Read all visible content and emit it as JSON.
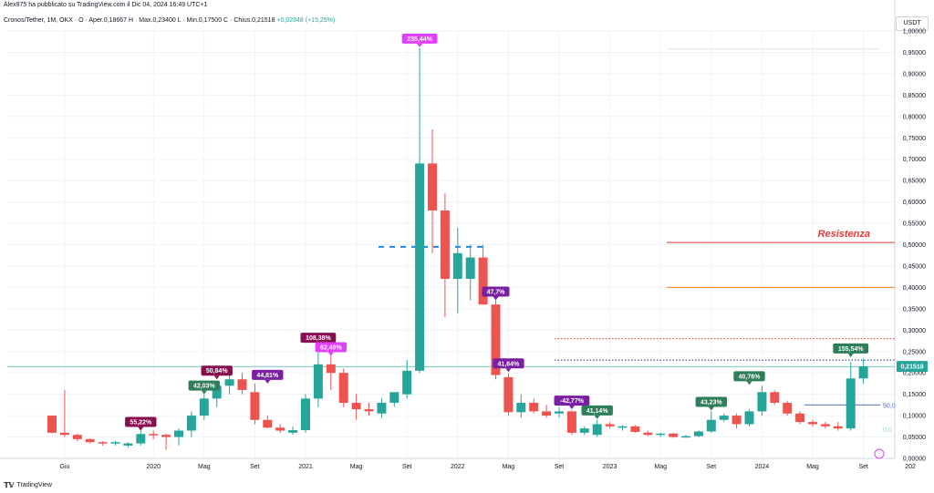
{
  "header": {
    "published_line": "Alex975 ha pubblicato su TradingView.com il Dic 04, 2024 16:49 UTC+1"
  },
  "ohlc_line": {
    "symbol": "Cronos/Tether, 1M, OKX",
    "open": "O · Aper.0,18667",
    "high": "H · Max.0,23400",
    "low": "L · Min.0,17500",
    "close": "C · Chius.0,21518",
    "change": "+0,02848 (+15,25%)"
  },
  "currency_label": "USDT",
  "footer": {
    "logo": "TradingView"
  },
  "colors": {
    "up": "#26a69a",
    "down": "#ef5350",
    "resistance_red": "#e53935",
    "orange_line": "#f57c00",
    "price_line": "#26a69a",
    "blue_dashed": "#1e88e5"
  },
  "chart_data": {
    "type": "candlestick",
    "title": "",
    "xlabel": "",
    "ylabel": "USDT",
    "ylim": [
      0,
      1.0
    ],
    "y_ticks": [
      "1,00000",
      "0,95000",
      "0,90000",
      "0,85000",
      "0,80000",
      "0,75000",
      "0,70000",
      "0,65000",
      "0,60000",
      "0,55000",
      "0,50000",
      "0,45000",
      "0,40000",
      "0,35000",
      "0,30000",
      "0,25000",
      "0,20000",
      "0,15000",
      "0,10000",
      "0,05000",
      "0,00000"
    ],
    "x_ticks": [
      "Giu",
      "2020",
      "Mag",
      "Set",
      "2021",
      "Mag",
      "Set",
      "2022",
      "Mag",
      "Set",
      "2023",
      "Mag",
      "Set",
      "2024",
      "Mag",
      "Set",
      "202"
    ],
    "start_month": "2019-05",
    "candles": [
      {
        "o": 0.1,
        "h": 0.1,
        "l": 0.058,
        "c": 0.06
      },
      {
        "o": 0.06,
        "h": 0.16,
        "l": 0.05,
        "c": 0.055
      },
      {
        "o": 0.055,
        "h": 0.058,
        "l": 0.04,
        "c": 0.045
      },
      {
        "o": 0.045,
        "h": 0.047,
        "l": 0.035,
        "c": 0.038
      },
      {
        "o": 0.038,
        "h": 0.04,
        "l": 0.03,
        "c": 0.035
      },
      {
        "o": 0.035,
        "h": 0.042,
        "l": 0.03,
        "c": 0.038
      },
      {
        "o": 0.03,
        "h": 0.038,
        "l": 0.025,
        "c": 0.035
      },
      {
        "o": 0.035,
        "h": 0.065,
        "l": 0.03,
        "c": 0.057
      },
      {
        "o": 0.057,
        "h": 0.065,
        "l": 0.045,
        "c": 0.055
      },
      {
        "o": 0.055,
        "h": 0.058,
        "l": 0.02,
        "c": 0.05
      },
      {
        "o": 0.05,
        "h": 0.07,
        "l": 0.03,
        "c": 0.065
      },
      {
        "o": 0.065,
        "h": 0.11,
        "l": 0.05,
        "c": 0.1
      },
      {
        "o": 0.1,
        "h": 0.15,
        "l": 0.09,
        "c": 0.14
      },
      {
        "o": 0.14,
        "h": 0.18,
        "l": 0.12,
        "c": 0.17
      },
      {
        "o": 0.17,
        "h": 0.2,
        "l": 0.15,
        "c": 0.185
      },
      {
        "o": 0.185,
        "h": 0.2,
        "l": 0.15,
        "c": 0.16
      },
      {
        "o": 0.155,
        "h": 0.175,
        "l": 0.08,
        "c": 0.09
      },
      {
        "o": 0.09,
        "h": 0.1,
        "l": 0.07,
        "c": 0.072
      },
      {
        "o": 0.072,
        "h": 0.08,
        "l": 0.06,
        "c": 0.065
      },
      {
        "o": 0.06,
        "h": 0.075,
        "l": 0.055,
        "c": 0.066
      },
      {
        "o": 0.066,
        "h": 0.15,
        "l": 0.06,
        "c": 0.14
      },
      {
        "o": 0.14,
        "h": 0.26,
        "l": 0.12,
        "c": 0.22
      },
      {
        "o": 0.22,
        "h": 0.24,
        "l": 0.16,
        "c": 0.2
      },
      {
        "o": 0.2,
        "h": 0.21,
        "l": 0.12,
        "c": 0.13
      },
      {
        "o": 0.13,
        "h": 0.15,
        "l": 0.09,
        "c": 0.115
      },
      {
        "o": 0.115,
        "h": 0.13,
        "l": 0.1,
        "c": 0.11
      },
      {
        "o": 0.105,
        "h": 0.14,
        "l": 0.095,
        "c": 0.13
      },
      {
        "o": 0.13,
        "h": 0.15,
        "l": 0.12,
        "c": 0.155
      },
      {
        "o": 0.15,
        "h": 0.23,
        "l": 0.14,
        "c": 0.205
      },
      {
        "o": 0.205,
        "h": 0.96,
        "l": 0.2,
        "c": 0.69
      },
      {
        "o": 0.69,
        "h": 0.77,
        "l": 0.48,
        "c": 0.58
      },
      {
        "o": 0.58,
        "h": 0.62,
        "l": 0.33,
        "c": 0.42
      },
      {
        "o": 0.42,
        "h": 0.54,
        "l": 0.34,
        "c": 0.48
      },
      {
        "o": 0.42,
        "h": 0.5,
        "l": 0.37,
        "c": 0.47
      },
      {
        "o": 0.47,
        "h": 0.5,
        "l": 0.36,
        "c": 0.36
      },
      {
        "o": 0.36,
        "h": 0.37,
        "l": 0.185,
        "c": 0.195
      },
      {
        "o": 0.19,
        "h": 0.2,
        "l": 0.1,
        "c": 0.108
      },
      {
        "o": 0.108,
        "h": 0.15,
        "l": 0.095,
        "c": 0.13
      },
      {
        "o": 0.13,
        "h": 0.14,
        "l": 0.105,
        "c": 0.11
      },
      {
        "o": 0.11,
        "h": 0.125,
        "l": 0.095,
        "c": 0.1
      },
      {
        "o": 0.105,
        "h": 0.12,
        "l": 0.095,
        "c": 0.11
      },
      {
        "o": 0.11,
        "h": 0.112,
        "l": 0.055,
        "c": 0.06
      },
      {
        "o": 0.06,
        "h": 0.075,
        "l": 0.055,
        "c": 0.07
      },
      {
        "o": 0.055,
        "h": 0.09,
        "l": 0.05,
        "c": 0.08
      },
      {
        "o": 0.08,
        "h": 0.085,
        "l": 0.07,
        "c": 0.075
      },
      {
        "o": 0.072,
        "h": 0.078,
        "l": 0.065,
        "c": 0.075
      },
      {
        "o": 0.075,
        "h": 0.078,
        "l": 0.06,
        "c": 0.062
      },
      {
        "o": 0.06,
        "h": 0.065,
        "l": 0.052,
        "c": 0.055
      },
      {
        "o": 0.055,
        "h": 0.06,
        "l": 0.05,
        "c": 0.058
      },
      {
        "o": 0.058,
        "h": 0.06,
        "l": 0.048,
        "c": 0.05
      },
      {
        "o": 0.05,
        "h": 0.055,
        "l": 0.048,
        "c": 0.052
      },
      {
        "o": 0.052,
        "h": 0.065,
        "l": 0.05,
        "c": 0.063
      },
      {
        "o": 0.063,
        "h": 0.11,
        "l": 0.06,
        "c": 0.09
      },
      {
        "o": 0.09,
        "h": 0.105,
        "l": 0.085,
        "c": 0.1
      },
      {
        "o": 0.1,
        "h": 0.105,
        "l": 0.07,
        "c": 0.08
      },
      {
        "o": 0.08,
        "h": 0.115,
        "l": 0.075,
        "c": 0.11
      },
      {
        "o": 0.11,
        "h": 0.17,
        "l": 0.1,
        "c": 0.155
      },
      {
        "o": 0.155,
        "h": 0.16,
        "l": 0.125,
        "c": 0.13
      },
      {
        "o": 0.13,
        "h": 0.135,
        "l": 0.1,
        "c": 0.105
      },
      {
        "o": 0.105,
        "h": 0.11,
        "l": 0.08,
        "c": 0.085
      },
      {
        "o": 0.085,
        "h": 0.09,
        "l": 0.075,
        "c": 0.08
      },
      {
        "o": 0.08,
        "h": 0.085,
        "l": 0.07,
        "c": 0.075
      },
      {
        "o": 0.075,
        "h": 0.085,
        "l": 0.065,
        "c": 0.07
      },
      {
        "o": 0.07,
        "h": 0.225,
        "l": 0.065,
        "c": 0.187
      },
      {
        "o": 0.187,
        "h": 0.234,
        "l": 0.175,
        "c": 0.215
      }
    ],
    "annotations": [
      {
        "text": "55,22%",
        "candle": 7,
        "price": 0.065,
        "color": "#880e4f"
      },
      {
        "text": "42,03%",
        "candle": 12,
        "price": 0.15,
        "color": "#2e7d5b"
      },
      {
        "text": "50,84%",
        "candle": 13,
        "price": 0.185,
        "color": "#880e4f"
      },
      {
        "text": "44,81%",
        "candle": 17,
        "price": 0.175,
        "color": "#7b1fa2"
      },
      {
        "text": "108,38%",
        "candle": 21,
        "price": 0.262,
        "color": "#880e4f"
      },
      {
        "text": "62,49%",
        "candle": 22,
        "price": 0.24,
        "color": "#e040fb"
      },
      {
        "text": "235,44%",
        "candle": 29,
        "price": 0.962,
        "color": "#e040fb"
      },
      {
        "text": "47,7%",
        "candle": 35,
        "price": 0.37,
        "color": "#7b1fa2"
      },
      {
        "text": "41,64%",
        "candle": 36,
        "price": 0.202,
        "color": "#7b1fa2"
      },
      {
        "text": "-42,77%",
        "candle": 41,
        "price": 0.115,
        "color": "#7b1fa2"
      },
      {
        "text": "41,14%",
        "candle": 43,
        "price": 0.092,
        "color": "#2e7d5b"
      },
      {
        "text": "43,23%",
        "candle": 52,
        "price": 0.112,
        "color": "#2e7d5b"
      },
      {
        "text": "40,76%",
        "candle": 55,
        "price": 0.172,
        "color": "#2e7d5b"
      },
      {
        "text": "155,54%",
        "candle": 63,
        "price": 0.237,
        "color": "#2e7d5b"
      }
    ],
    "levels": [
      {
        "name": "Resistenza",
        "price": 0.505,
        "color": "#e53935",
        "style": "solid"
      },
      {
        "price": 0.4,
        "color": "#f57c00",
        "style": "solid"
      },
      {
        "price": 0.28,
        "color": "#e53935",
        "style": "dotted"
      },
      {
        "price": 0.23,
        "color": "#1a237e",
        "style": "dotted"
      },
      {
        "price": 0.125,
        "color": "#5c6bc0",
        "style": "solid"
      },
      {
        "price": 0.495,
        "color": "#1e88e5",
        "style": "dashed"
      }
    ],
    "current_price": "0,21518",
    "small_labels": [
      "50,0",
      "0,0"
    ]
  }
}
